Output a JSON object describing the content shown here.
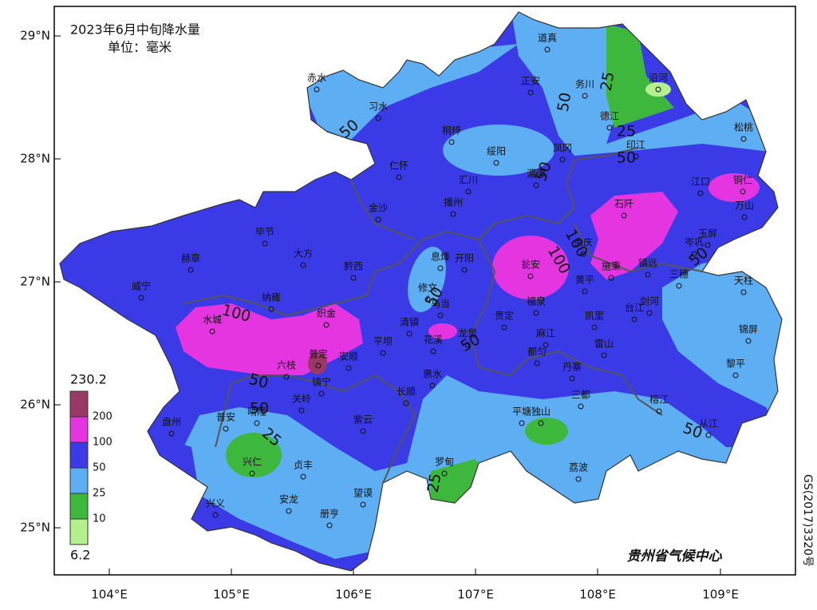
{
  "title": "2023年6月中旬降水量",
  "unit": "单位：毫米",
  "axes": {
    "x_labels": [
      "104°E",
      "105°E",
      "106°E",
      "107°E",
      "108°E",
      "109°E"
    ],
    "y_labels": [
      "29°N",
      "28°N",
      "27°N",
      "26°N",
      "25°N"
    ]
  },
  "legend": {
    "max": "230.2",
    "min": "6.2",
    "levels": [
      {
        "label": "200",
        "color": "#9a3866"
      },
      {
        "label": "100",
        "color": "#e535e0"
      },
      {
        "label": "50",
        "color": "#3a3ae6"
      },
      {
        "label": "25",
        "color": "#5eaef4"
      },
      {
        "label": "10",
        "color": "#3db83d"
      }
    ],
    "lowest_color": "#b4f08c"
  },
  "stations": [
    "道真",
    "正安",
    "务川",
    "沿河",
    "赤水",
    "习水",
    "桐梓",
    "绥阳",
    "德江",
    "凤冈",
    "印江",
    "松桃",
    "仁怀",
    "汇川",
    "湄潭",
    "江口",
    "铜仁",
    "金沙",
    "播州",
    "石阡",
    "万山",
    "毕节",
    "大方",
    "息烽",
    "开阳",
    "余庆",
    "岑巩",
    "玉屏",
    "赫章",
    "黔西",
    "修文",
    "瓮安",
    "施秉",
    "镇远",
    "三穗",
    "天柱",
    "威宁",
    "纳雍",
    "织金",
    "乌当",
    "清镇",
    "花溪",
    "龙里",
    "贵定",
    "福泉",
    "黄平",
    "凯里",
    "台江",
    "剑河",
    "锦屏",
    "麻江",
    "都匀",
    "雷山",
    "水城",
    "六枝",
    "普定",
    "安顺",
    "平坝",
    "镇宁",
    "关岭",
    "紫云",
    "长顺",
    "惠水",
    "丹寨",
    "三都",
    "榕江",
    "黎平",
    "从江",
    "盘州",
    "普安",
    "晴隆",
    "兴仁",
    "贞丰",
    "望谟",
    "罗甸",
    "平塘",
    "独山",
    "荔波",
    "兴义",
    "安龙",
    "册亨"
  ],
  "contour_labels": [
    "50",
    "50",
    "25",
    "25",
    "50",
    "50",
    "100",
    "50",
    "50",
    "100",
    "100",
    "50",
    "50",
    "25",
    "50",
    "25",
    "50"
  ],
  "credit": "贵州省气候中心",
  "code": "GS(2017)3320号"
}
